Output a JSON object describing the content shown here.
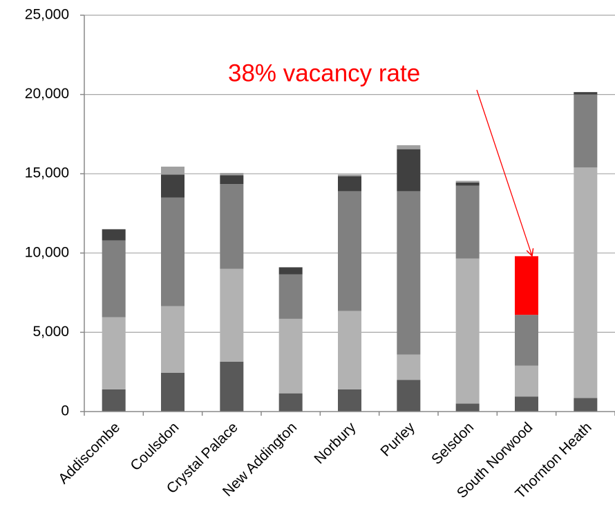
{
  "chart_data": {
    "type": "stacked_bar",
    "annotation": "38% vacancy rate",
    "categories": [
      "Addiscombe",
      "Coulsdon",
      "Crystal Palace",
      "New Addington",
      "Norbury",
      "Purley",
      "Selsdon",
      "South Norwood",
      "Thornton Heath"
    ],
    "series": [
      {
        "color": "#595959",
        "values": [
          1400,
          2450,
          3150,
          1150,
          1400,
          2000,
          500,
          950,
          850
        ]
      },
      {
        "color": "#b2b2b2",
        "values": [
          4550,
          4200,
          5850,
          4700,
          4950,
          1600,
          9150,
          1950,
          14550
        ]
      },
      {
        "color": "#808080",
        "values": [
          4850,
          6850,
          5350,
          2800,
          7550,
          10300,
          4600,
          3200,
          4600
        ]
      },
      {
        "color": "#404040",
        "values": [
          700,
          1450,
          550,
          450,
          950,
          2650,
          200,
          0,
          150
        ]
      },
      {
        "color": "#a0a0a0",
        "values": [
          0,
          500,
          150,
          0,
          100,
          250,
          100,
          0,
          0
        ]
      },
      {
        "color": "#ff0000",
        "values": [
          0,
          0,
          0,
          0,
          0,
          0,
          0,
          3700,
          0
        ]
      }
    ],
    "ylim": [
      0,
      25000
    ],
    "yticks": [
      0,
      {
        "value": 5000,
        "label": "5,000"
      },
      {
        "value": 10000,
        "label": "10,000"
      },
      {
        "value": 15000,
        "label": "15,000"
      },
      {
        "value": 20000,
        "label": "20,000"
      },
      {
        "value": 25000,
        "label": "25,000"
      }
    ],
    "grid": true
  }
}
